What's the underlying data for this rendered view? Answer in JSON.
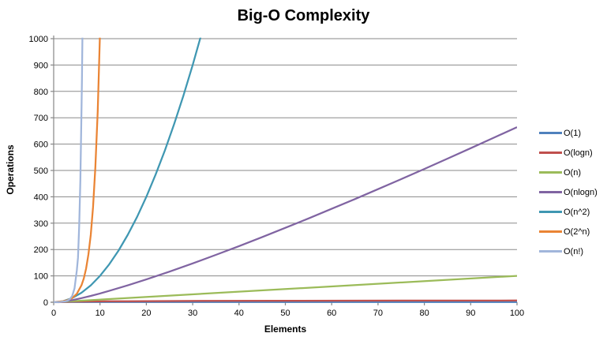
{
  "chart_data": {
    "type": "line",
    "title": "Big-O Complexity",
    "xlabel": "Elements",
    "ylabel": "Operations",
    "xlim": [
      0,
      100
    ],
    "ylim": [
      0,
      1000
    ],
    "x_ticks": [
      0,
      10,
      20,
      30,
      40,
      50,
      60,
      70,
      80,
      90,
      100
    ],
    "y_ticks": [
      0,
      100,
      200,
      300,
      400,
      500,
      600,
      700,
      800,
      900,
      1000
    ],
    "grid": "horizontal",
    "legend_position": "right",
    "background": "#FFFFFF",
    "axis_color": "#878787",
    "gridline_color": "#8A8A8A",
    "title_color": "#000000",
    "series": [
      {
        "name": "O(1)",
        "color": "#4F81BD",
        "points": [
          [
            0,
            1
          ],
          [
            100,
            1
          ]
        ]
      },
      {
        "name": "O(logn)",
        "color": "#C0504D",
        "points": [
          [
            1,
            0
          ],
          [
            2,
            1
          ],
          [
            3,
            1.58
          ],
          [
            4,
            2
          ],
          [
            6,
            2.58
          ],
          [
            8,
            3
          ],
          [
            12,
            3.58
          ],
          [
            16,
            4
          ],
          [
            24,
            4.58
          ],
          [
            32,
            5
          ],
          [
            48,
            5.58
          ],
          [
            64,
            6
          ],
          [
            80,
            6.32
          ],
          [
            100,
            6.64
          ]
        ]
      },
      {
        "name": "O(n)",
        "color": "#9BBB59",
        "points": [
          [
            0,
            0
          ],
          [
            100,
            100
          ]
        ]
      },
      {
        "name": "O(nlogn)",
        "color": "#8064A2",
        "points": [
          [
            0,
            0
          ],
          [
            1,
            0
          ],
          [
            2,
            2
          ],
          [
            3,
            4.75
          ],
          [
            4,
            8
          ],
          [
            5,
            11.6
          ],
          [
            6,
            15.5
          ],
          [
            8,
            24
          ],
          [
            10,
            33.2
          ],
          [
            12,
            43
          ],
          [
            16,
            64
          ],
          [
            20,
            86.4
          ],
          [
            25,
            116.1
          ],
          [
            30,
            147.2
          ],
          [
            35,
            179.5
          ],
          [
            40,
            212.9
          ],
          [
            45,
            247.2
          ],
          [
            50,
            282.2
          ],
          [
            55,
            318
          ],
          [
            60,
            354.4
          ],
          [
            65,
            391.4
          ],
          [
            70,
            429
          ],
          [
            75,
            467.1
          ],
          [
            80,
            505.8
          ],
          [
            85,
            544.8
          ],
          [
            90,
            584.3
          ],
          [
            95,
            624.2
          ],
          [
            100,
            664.4
          ]
        ]
      },
      {
        "name": "O(n^2)",
        "color": "#3F97B2",
        "points": [
          [
            0,
            0
          ],
          [
            2,
            4
          ],
          [
            4,
            16
          ],
          [
            6,
            36
          ],
          [
            8,
            64
          ],
          [
            10,
            100
          ],
          [
            12,
            144
          ],
          [
            14,
            196
          ],
          [
            16,
            256
          ],
          [
            18,
            324
          ],
          [
            20,
            400
          ],
          [
            22,
            484
          ],
          [
            24,
            576
          ],
          [
            26,
            676
          ],
          [
            28,
            784
          ],
          [
            30,
            900
          ],
          [
            32,
            1024
          ],
          [
            32.5,
            1056
          ]
        ]
      },
      {
        "name": "O(2^n)",
        "color": "#EA8434",
        "points": [
          [
            0,
            1
          ],
          [
            1,
            2
          ],
          [
            2,
            4
          ],
          [
            3,
            8
          ],
          [
            4,
            16
          ],
          [
            5,
            32
          ],
          [
            6,
            64
          ],
          [
            6.5,
            90.5
          ],
          [
            7,
            128
          ],
          [
            7.5,
            181
          ],
          [
            8,
            256
          ],
          [
            8.5,
            362
          ],
          [
            9,
            512
          ],
          [
            9.5,
            724
          ],
          [
            10,
            1024
          ],
          [
            10.2,
            1176
          ]
        ]
      },
      {
        "name": "O(n!)",
        "color": "#A1B6DB",
        "points": [
          [
            0,
            1
          ],
          [
            1,
            1
          ],
          [
            1.5,
            1.3
          ],
          [
            2,
            2
          ],
          [
            2.5,
            3.3
          ],
          [
            3,
            6
          ],
          [
            3.5,
            11.6
          ],
          [
            4,
            24
          ],
          [
            4.5,
            52.3
          ],
          [
            5,
            120
          ],
          [
            5.25,
            169
          ],
          [
            5.5,
            288
          ],
          [
            5.75,
            460
          ],
          [
            6,
            720
          ],
          [
            6.1,
            840
          ],
          [
            6.2,
            1000
          ],
          [
            6.35,
            1180
          ]
        ]
      }
    ]
  }
}
